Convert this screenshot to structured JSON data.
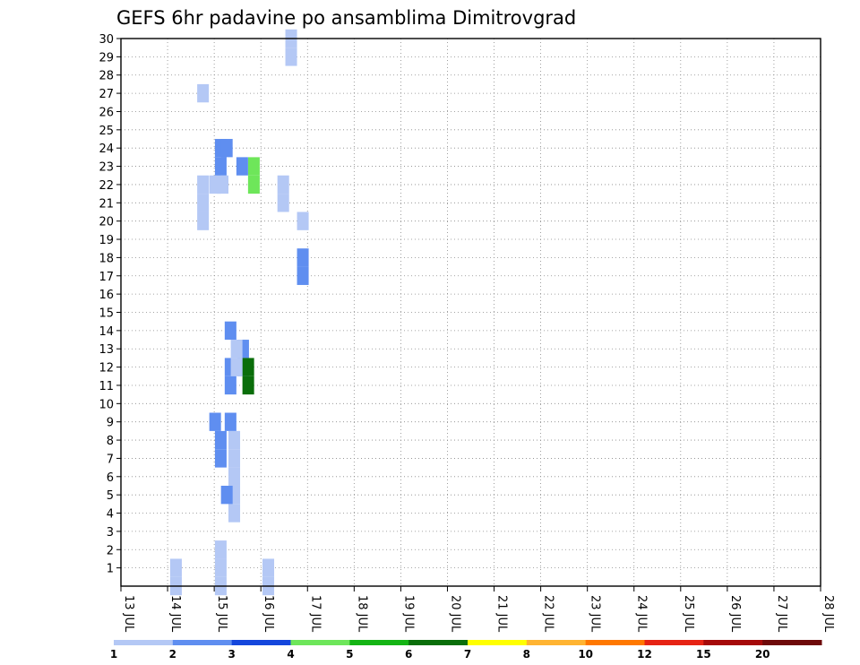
{
  "chart_data": {
    "type": "heatmap",
    "title": "GEFS 6hr padavine po ansamblima Dimitrovgrad",
    "xlabel": "",
    "ylabel": "",
    "x_categories": [
      "13 JUL",
      "14 JUL",
      "15 JUL",
      "16 JUL",
      "17 JUL",
      "18 JUL",
      "19 JUL",
      "20 JUL",
      "21 JUL",
      "22 JUL",
      "23 JUL",
      "24 JUL",
      "25 JUL",
      "26 JUL",
      "27 JUL",
      "28 JUL"
    ],
    "x_range_days": [
      13,
      28
    ],
    "y_ticks": [
      1,
      2,
      3,
      4,
      5,
      6,
      7,
      8,
      9,
      10,
      11,
      12,
      13,
      14,
      15,
      16,
      17,
      18,
      19,
      20,
      21,
      22,
      23,
      24,
      25,
      26,
      27,
      28,
      29,
      30
    ],
    "y_range": [
      0,
      30
    ],
    "grid": true,
    "legend_position": "bottom",
    "legend_labels": [
      "1",
      "2",
      "3",
      "4",
      "5",
      "6",
      "7",
      "8",
      "10",
      "12",
      "15",
      "20"
    ],
    "legend_colors": [
      "#b4c8f5",
      "#5f8ef0",
      "#1446dc",
      "#6ee65a",
      "#14b414",
      "#0a6e0a",
      "#ffff00",
      "#ffb432",
      "#ff7800",
      "#e62314",
      "#a50a0a",
      "#6e0a0a"
    ],
    "cells": [
      [
        14.18,
        1,
        1.5
      ],
      [
        14.18,
        0,
        1.5
      ],
      [
        15.14,
        0,
        1.5
      ],
      [
        15.14,
        1,
        1.5
      ],
      [
        15.14,
        2,
        1.5
      ],
      [
        15.43,
        4,
        1.5
      ],
      [
        15.43,
        5,
        1.5
      ],
      [
        15.43,
        6,
        1.5
      ],
      [
        15.43,
        7,
        1.5
      ],
      [
        15.43,
        8,
        1.5
      ],
      [
        16.16,
        0,
        1.5
      ],
      [
        16.16,
        1,
        1.5
      ],
      [
        16.9,
        17,
        2.5
      ],
      [
        16.9,
        18,
        2.5
      ],
      [
        16.9,
        20,
        1.5
      ],
      [
        15.14,
        24,
        2.5
      ],
      [
        16.65,
        29,
        1.5
      ],
      [
        16.65,
        30,
        1.5
      ],
      [
        14.76,
        27,
        1.5
      ],
      [
        14.76,
        21,
        1.5
      ],
      [
        14.76,
        20,
        1.5
      ],
      [
        14.76,
        22,
        1.5
      ],
      [
        15.35,
        11,
        2.5
      ],
      [
        15.35,
        12,
        2.5
      ],
      [
        15.35,
        14,
        2.5
      ],
      [
        16.48,
        21,
        1.5
      ],
      [
        16.48,
        22,
        1.5
      ],
      [
        15.02,
        9,
        2.5
      ],
      [
        15.35,
        9,
        2.5
      ],
      [
        15.02,
        22,
        1.5
      ],
      [
        15.18,
        22,
        1.5
      ],
      [
        15.85,
        22,
        4.5
      ],
      [
        15.85,
        23,
        4.5
      ],
      [
        15.6,
        23,
        2.5
      ],
      [
        15.62,
        12,
        2.5
      ],
      [
        15.62,
        13,
        2.5
      ],
      [
        15.73,
        11,
        6.5
      ],
      [
        15.73,
        12,
        6.5
      ],
      [
        15.48,
        13,
        1.5
      ],
      [
        15.48,
        12,
        1.5
      ],
      [
        15.27,
        24,
        2.5
      ],
      [
        15.27,
        5,
        2.5
      ],
      [
        15.14,
        7,
        2.5
      ],
      [
        15.14,
        8,
        2.5
      ],
      [
        15.14,
        23,
        2.5
      ]
    ]
  }
}
